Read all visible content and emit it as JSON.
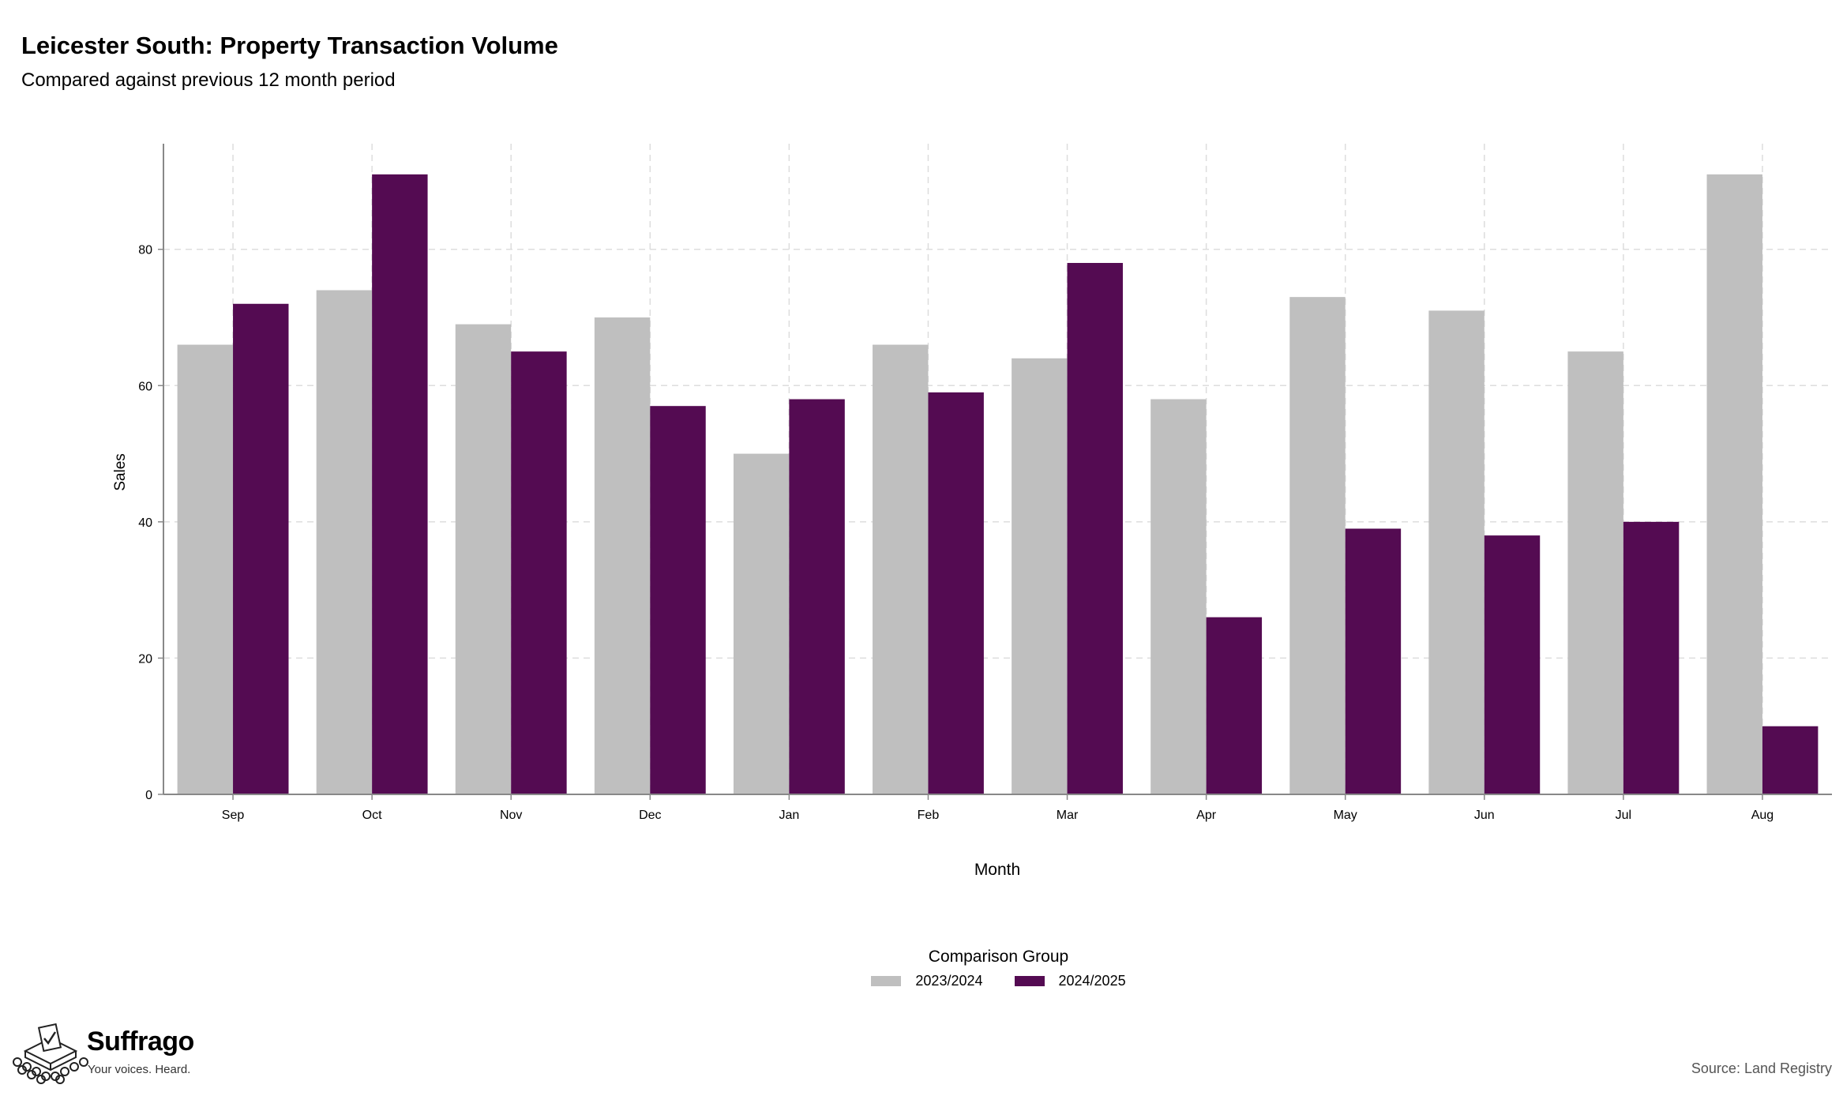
{
  "header": {
    "title": "Leicester South: Property Transaction Volume",
    "subtitle": "Compared against previous 12 month period"
  },
  "chart_data": {
    "type": "bar",
    "categories": [
      "Sep",
      "Oct",
      "Nov",
      "Dec",
      "Jan",
      "Feb",
      "Mar",
      "Apr",
      "May",
      "Jun",
      "Jul",
      "Aug"
    ],
    "series": [
      {
        "name": "2023/2024",
        "color": "#bfbfbf",
        "values": [
          66,
          74,
          69,
          70,
          50,
          66,
          64,
          58,
          73,
          71,
          65,
          91
        ]
      },
      {
        "name": "2024/2025",
        "color": "#540b52",
        "values": [
          72,
          91,
          65,
          57,
          58,
          59,
          78,
          26,
          39,
          38,
          40,
          10
        ]
      }
    ],
    "xlabel": "Month",
    "ylabel": "Sales",
    "ylim": [
      0,
      95.5
    ],
    "yticks": [
      0,
      20,
      40,
      60,
      80
    ],
    "grid": true,
    "legend_position": "bottom"
  },
  "legend": {
    "title": "Comparison Group",
    "items": [
      "2023/2024",
      "2024/2025"
    ]
  },
  "brand": {
    "name": "Suffrago",
    "tagline": "Your voices. Heard.",
    "logo_icon": "ballot-box-icon"
  },
  "footer": {
    "source": "Source: Land Registry"
  }
}
